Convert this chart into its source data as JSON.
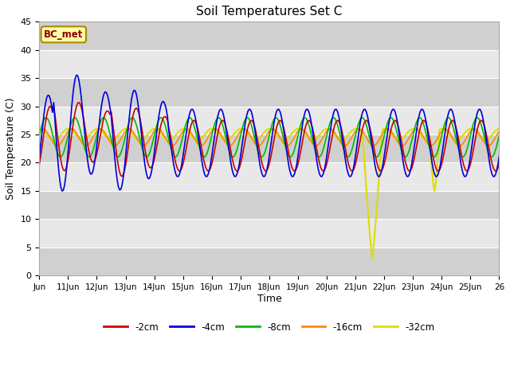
{
  "title": "Soil Temperatures Set C",
  "xlabel": "Time",
  "ylabel": "Soil Temperature (C)",
  "annotation": "BC_met",
  "ylim": [
    0,
    45
  ],
  "xlim": [
    0,
    384
  ],
  "fig_bg": "#ffffff",
  "plot_bg_light": "#e8e8e8",
  "plot_bg_dark": "#d0d0d0",
  "series": {
    "-2cm": {
      "color": "#cc0000",
      "lw": 1.2
    },
    "-4cm": {
      "color": "#0000dd",
      "lw": 1.2
    },
    "-8cm": {
      "color": "#00bb00",
      "lw": 1.2
    },
    "-16cm": {
      "color": "#ff8800",
      "lw": 1.2
    },
    "-32cm": {
      "color": "#dddd00",
      "lw": 1.5
    }
  },
  "xtick_labels": [
    "Jun",
    "11Jun",
    "12Jun",
    "13Jun",
    "14Jun",
    "15Jun",
    "16Jun",
    "17Jun",
    "18Jun",
    "19Jun",
    "20Jun",
    "21Jun",
    "22Jun",
    "23Jun",
    "24Jun",
    "25Jun",
    "26"
  ],
  "ytick_vals": [
    0,
    5,
    10,
    15,
    20,
    25,
    30,
    35,
    40,
    45
  ]
}
